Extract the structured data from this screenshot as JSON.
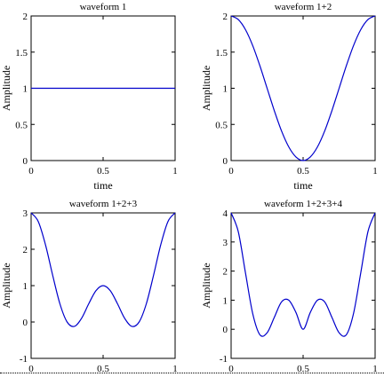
{
  "chart_data": [
    {
      "type": "line",
      "title": "waveform 1",
      "xlabel": "time",
      "ylabel": "Amplitude",
      "xlim": [
        0,
        1
      ],
      "ylim": [
        0,
        2
      ],
      "xticks": [
        0,
        0.5,
        1
      ],
      "yticks": [
        0,
        0.5,
        1,
        1.5,
        2
      ],
      "xtick_labels": [
        "0",
        "0.5",
        "1"
      ],
      "ytick_labels": [
        "0",
        "0.5",
        "1",
        "1.5",
        "2"
      ],
      "line_color": "#0000cc",
      "grid": false,
      "series": [
        {
          "x": [
            0,
            0.1,
            0.2,
            0.3,
            0.4,
            0.5,
            0.6,
            0.7,
            0.8,
            0.9,
            1.0
          ],
          "y": [
            1,
            1,
            1,
            1,
            1,
            1,
            1,
            1,
            1,
            1,
            1
          ]
        }
      ]
    },
    {
      "type": "line",
      "title": "waveform 1+2",
      "xlabel": "time",
      "ylabel": "Amplitude",
      "xlim": [
        0,
        1
      ],
      "ylim": [
        0,
        2
      ],
      "xticks": [
        0,
        0.5,
        1
      ],
      "yticks": [
        0,
        0.5,
        1,
        1.5,
        2
      ],
      "xtick_labels": [
        "0",
        "0.5",
        "1"
      ],
      "ytick_labels": [
        "0",
        "0.5",
        "1",
        "1.5",
        "2"
      ],
      "line_color": "#0000cc",
      "grid": false,
      "series": [
        {
          "x": [
            0,
            0.05,
            0.1,
            0.15,
            0.2,
            0.25,
            0.3,
            0.35,
            0.4,
            0.45,
            0.5,
            0.55,
            0.6,
            0.65,
            0.7,
            0.75,
            0.8,
            0.85,
            0.9,
            0.95,
            1.0
          ],
          "y": [
            2.0,
            1.95,
            1.81,
            1.59,
            1.31,
            1.0,
            0.69,
            0.41,
            0.19,
            0.05,
            0.0,
            0.05,
            0.19,
            0.41,
            0.69,
            1.0,
            1.31,
            1.59,
            1.81,
            1.95,
            2.0
          ]
        }
      ]
    },
    {
      "type": "line",
      "title": "waveform 1+2+3",
      "xlabel": "",
      "ylabel": "Amplitude",
      "xlim": [
        0,
        1
      ],
      "ylim": [
        -1,
        3
      ],
      "xticks": [
        0,
        0.5,
        1
      ],
      "yticks": [
        -1,
        0,
        1,
        2,
        3
      ],
      "xtick_labels": [
        "0",
        "0.5",
        "1"
      ],
      "ytick_labels": [
        "-1",
        "0",
        "1",
        "2",
        "3"
      ],
      "line_color": "#0000cc",
      "grid": false,
      "series": [
        {
          "x": [
            0,
            0.05,
            0.1,
            0.15,
            0.2,
            0.25,
            0.3,
            0.35,
            0.4,
            0.45,
            0.5,
            0.55,
            0.6,
            0.65,
            0.7,
            0.75,
            0.8,
            0.85,
            0.9,
            0.95,
            1.0
          ],
          "y": [
            3.0,
            2.76,
            2.12,
            1.28,
            0.5,
            0.0,
            -0.12,
            0.1,
            0.5,
            0.86,
            1.0,
            0.86,
            0.5,
            0.1,
            -0.12,
            0.0,
            0.5,
            1.28,
            2.12,
            2.76,
            3.0
          ]
        }
      ]
    },
    {
      "type": "line",
      "title": "waveform 1+2+3+4",
      "xlabel": "",
      "ylabel": "Amplitude",
      "xlim": [
        0,
        1
      ],
      "ylim": [
        -1,
        4
      ],
      "xticks": [
        0,
        0.5,
        1
      ],
      "yticks": [
        -1,
        0,
        1,
        2,
        3,
        4
      ],
      "xtick_labels": [
        "0",
        "0.5",
        "1"
      ],
      "ytick_labels": [
        "-1",
        "0",
        "1",
        "2",
        "3",
        "4"
      ],
      "line_color": "#0000cc",
      "grid": false,
      "series": [
        {
          "x": [
            0,
            0.05,
            0.1,
            0.15,
            0.2,
            0.25,
            0.3,
            0.35,
            0.4,
            0.45,
            0.5,
            0.55,
            0.6,
            0.65,
            0.7,
            0.75,
            0.8,
            0.85,
            0.9,
            0.95,
            1.0
          ],
          "y": [
            4.0,
            3.35,
            1.93,
            0.54,
            -0.19,
            -0.12,
            0.41,
            0.94,
            1.0,
            0.58,
            0.0,
            0.58,
            1.0,
            0.94,
            0.41,
            -0.12,
            -0.19,
            0.54,
            1.93,
            3.35,
            4.0
          ]
        }
      ]
    }
  ]
}
